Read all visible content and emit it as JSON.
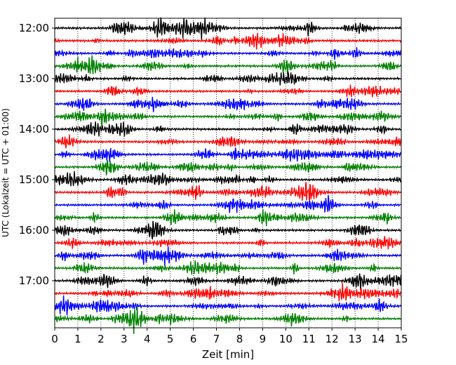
{
  "chart_data": {
    "type": "line",
    "title": "",
    "xlabel": "Zeit  [min]",
    "ylabel": "UTC (Lokalzeit = UTC + 01:00)",
    "xlim": [
      0,
      15
    ],
    "x_ticks": [
      "0",
      "1",
      "2",
      "3",
      "4",
      "5",
      "6",
      "7",
      "8",
      "9",
      "10",
      "11",
      "12",
      "13",
      "14",
      "15"
    ],
    "y_ticks": [
      "12:00",
      "13:00",
      "14:00",
      "15:00",
      "16:00",
      "17:00"
    ],
    "trace_start_times": [
      "12:00",
      "12:15",
      "12:30",
      "12:45",
      "13:00",
      "13:15",
      "13:30",
      "13:45",
      "14:00",
      "14:15",
      "14:30",
      "14:45",
      "15:00",
      "15:15",
      "15:30",
      "15:45",
      "16:00",
      "16:15",
      "16:30",
      "16:45",
      "17:00",
      "17:15",
      "17:30",
      "17:45"
    ],
    "trace_colors": [
      "#000000",
      "#ff0000",
      "#0000ff",
      "#008000"
    ],
    "trace_duration_min": 15,
    "vertical_grid": true,
    "grid_style": "dotted"
  }
}
